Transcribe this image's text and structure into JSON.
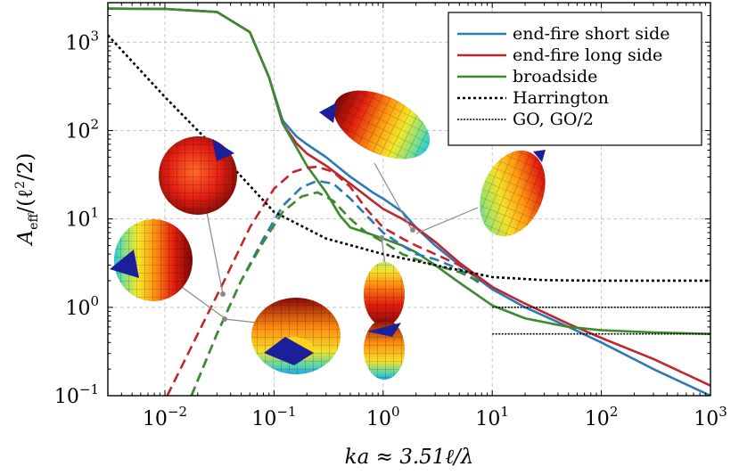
{
  "chart_data": {
    "type": "line",
    "xscale": "log",
    "yscale": "log",
    "xlim": [
      0.003,
      1000
    ],
    "ylim": [
      0.1,
      2800
    ],
    "xlabel": {
      "main": "ka ≈ 3.51ℓ/λ"
    },
    "ylabel": {
      "main": "A",
      "sub": "eff",
      "rest": "/(ℓ",
      "sup": "2",
      "tail": "/2)"
    },
    "grid": true,
    "legend_position": "top-right",
    "x_ticks": [
      {
        "value": 0.01,
        "base": "10",
        "exp": "−2"
      },
      {
        "value": 0.1,
        "base": "10",
        "exp": "−1"
      },
      {
        "value": 1,
        "base": "10",
        "exp": "0"
      },
      {
        "value": 10,
        "base": "10",
        "exp": "1"
      },
      {
        "value": 100,
        "base": "10",
        "exp": "2"
      },
      {
        "value": 1000,
        "base": "10",
        "exp": "3"
      }
    ],
    "y_ticks": [
      {
        "value": 0.1,
        "base": "10",
        "exp": "−1"
      },
      {
        "value": 1,
        "base": "10",
        "exp": "0"
      },
      {
        "value": 10,
        "base": "10",
        "exp": "1"
      },
      {
        "value": 100,
        "base": "10",
        "exp": "2"
      },
      {
        "value": 1000,
        "base": "10",
        "exp": "3"
      }
    ],
    "series": [
      {
        "name": "end-fire short side",
        "color": "#2a7ab8",
        "style": "solid",
        "points": [
          [
            0.003,
            2400
          ],
          [
            0.01,
            2380
          ],
          [
            0.03,
            2200
          ],
          [
            0.06,
            1300
          ],
          [
            0.09,
            400
          ],
          [
            0.12,
            130
          ],
          [
            0.16,
            86
          ],
          [
            0.2,
            70
          ],
          [
            0.3,
            50
          ],
          [
            0.5,
            30
          ],
          [
            0.8,
            20
          ],
          [
            1,
            17
          ],
          [
            1.5,
            12
          ],
          [
            2,
            8
          ],
          [
            3,
            5
          ],
          [
            5,
            3
          ],
          [
            10,
            1.6
          ],
          [
            20,
            1
          ],
          [
            50,
            0.6
          ],
          [
            100,
            0.4
          ],
          [
            300,
            0.2
          ],
          [
            1000,
            0.1
          ]
        ]
      },
      {
        "name": "end-fire long side",
        "color": "#c0262d",
        "style": "solid",
        "points": [
          [
            0.003,
            2400
          ],
          [
            0.01,
            2380
          ],
          [
            0.03,
            2200
          ],
          [
            0.06,
            1300
          ],
          [
            0.09,
            400
          ],
          [
            0.12,
            120
          ],
          [
            0.16,
            72
          ],
          [
            0.2,
            55
          ],
          [
            0.3,
            40
          ],
          [
            0.5,
            25
          ],
          [
            0.8,
            16
          ],
          [
            1,
            13
          ],
          [
            1.5,
            10
          ],
          [
            2,
            8
          ],
          [
            3,
            5.5
          ],
          [
            5,
            3.2
          ],
          [
            10,
            1.7
          ],
          [
            20,
            1.1
          ],
          [
            50,
            0.65
          ],
          [
            100,
            0.45
          ],
          [
            300,
            0.26
          ],
          [
            1000,
            0.13
          ]
        ]
      },
      {
        "name": "broadside",
        "color": "#3d8a2e",
        "style": "solid",
        "points": [
          [
            0.003,
            2400
          ],
          [
            0.01,
            2380
          ],
          [
            0.03,
            2200
          ],
          [
            0.06,
            1300
          ],
          [
            0.09,
            400
          ],
          [
            0.12,
            120
          ],
          [
            0.16,
            65
          ],
          [
            0.2,
            40
          ],
          [
            0.3,
            20
          ],
          [
            0.4,
            11
          ],
          [
            0.5,
            8
          ],
          [
            0.7,
            7
          ],
          [
            1,
            6
          ],
          [
            1.5,
            5
          ],
          [
            2,
            4.2
          ],
          [
            3,
            3
          ],
          [
            5,
            1.9
          ],
          [
            10,
            1.05
          ],
          [
            20,
            0.75
          ],
          [
            50,
            0.6
          ],
          [
            100,
            0.55
          ],
          [
            300,
            0.52
          ],
          [
            1000,
            0.5
          ]
        ]
      },
      {
        "name": "end-fire short side (dashed)",
        "color": "#2a7ab8",
        "style": "dashed",
        "show_in_legend": false,
        "points": [
          [
            0.0175,
            0.1
          ],
          [
            0.03,
            0.5
          ],
          [
            0.05,
            2
          ],
          [
            0.08,
            6
          ],
          [
            0.12,
            14
          ],
          [
            0.18,
            23
          ],
          [
            0.25,
            27
          ],
          [
            0.35,
            25
          ],
          [
            0.5,
            17
          ],
          [
            0.7,
            11
          ],
          [
            1,
            7
          ],
          [
            1.5,
            5
          ],
          [
            2,
            4
          ],
          [
            3,
            3.5
          ],
          [
            5,
            2.7
          ],
          [
            8,
            1.8
          ]
        ]
      },
      {
        "name": "end-fire long side (dashed)",
        "color": "#c0262d",
        "style": "dashed",
        "show_in_legend": false,
        "points": [
          [
            0.0105,
            0.1
          ],
          [
            0.02,
            0.5
          ],
          [
            0.035,
            2
          ],
          [
            0.06,
            8
          ],
          [
            0.1,
            22
          ],
          [
            0.15,
            34
          ],
          [
            0.2,
            38
          ],
          [
            0.25,
            39
          ],
          [
            0.35,
            34
          ],
          [
            0.5,
            23
          ],
          [
            0.7,
            13
          ],
          [
            1,
            8
          ],
          [
            1.5,
            6
          ],
          [
            2,
            5
          ],
          [
            3,
            4
          ],
          [
            5,
            3
          ],
          [
            8,
            2
          ]
        ]
      },
      {
        "name": "broadside (dashed)",
        "color": "#3d8a2e",
        "style": "dashed",
        "show_in_legend": false,
        "points": [
          [
            0.0175,
            0.1
          ],
          [
            0.03,
            0.5
          ],
          [
            0.05,
            2
          ],
          [
            0.08,
            5.5
          ],
          [
            0.12,
            12
          ],
          [
            0.18,
            18
          ],
          [
            0.25,
            20
          ],
          [
            0.35,
            16
          ],
          [
            0.5,
            10
          ],
          [
            0.7,
            7
          ],
          [
            1,
            5.5
          ],
          [
            1.5,
            4
          ],
          [
            2,
            3.5
          ],
          [
            3,
            3
          ],
          [
            5,
            2.5
          ],
          [
            8,
            1.9
          ]
        ]
      },
      {
        "name": "Harrington",
        "color": "#000000",
        "style": "dotted",
        "points": [
          [
            0.003,
            1200
          ],
          [
            0.01,
            240
          ],
          [
            0.03,
            60
          ],
          [
            0.1,
            12
          ],
          [
            0.3,
            6
          ],
          [
            1,
            4
          ],
          [
            3,
            3
          ],
          [
            10,
            2.2
          ],
          [
            30,
            2.03
          ],
          [
            100,
            2.0
          ],
          [
            1000,
            2.0
          ]
        ]
      },
      {
        "name": "GO, GO/2",
        "color": "#000000",
        "style": "dotted-fine",
        "segments": [
          [
            [
              10,
              1
            ],
            [
              1000,
              1
            ]
          ],
          [
            [
              10,
              0.5
            ],
            [
              1000,
              0.5
            ]
          ]
        ]
      }
    ],
    "annotations": [
      {
        "name": "inset-pattern-1",
        "palette": "red"
      },
      {
        "name": "inset-pattern-2",
        "palette": "jet"
      },
      {
        "name": "inset-pattern-3",
        "palette": "jet"
      },
      {
        "name": "inset-pattern-4",
        "palette": "jet"
      },
      {
        "name": "inset-pattern-5",
        "palette": "jet"
      },
      {
        "name": "inset-pattern-6",
        "palette": "jet"
      }
    ]
  }
}
